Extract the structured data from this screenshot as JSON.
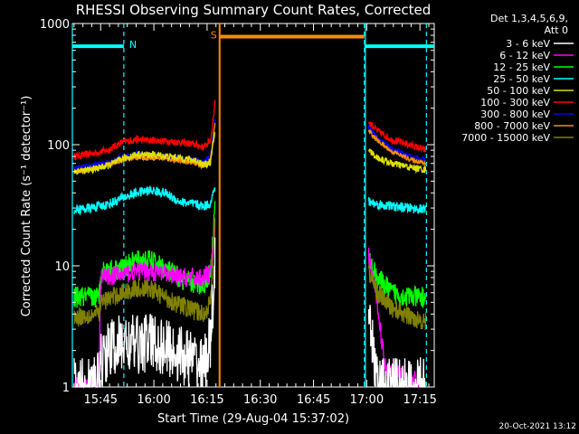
{
  "chart_data": {
    "type": "line",
    "title": "RHESSI Observing Summary Count Rates, Corrected",
    "xlabel": "Start Time (29-Aug-04 15:37:02)",
    "ylabel": "Corrected Count Rate (s⁻¹ detector⁻¹)",
    "y_scale": "log",
    "ylim": [
      1,
      1000
    ],
    "xlim_minutes": [
      0,
      102
    ],
    "x_tick_labels": [
      {
        "label": "15:45",
        "t": 7.97
      },
      {
        "label": "16:00",
        "t": 22.97
      },
      {
        "label": "16:15",
        "t": 37.97
      },
      {
        "label": "16:30",
        "t": 52.97
      },
      {
        "label": "16:45",
        "t": 67.97
      },
      {
        "label": "17:00",
        "t": 82.97
      },
      {
        "label": "17:15",
        "t": 97.97
      }
    ],
    "y_tick_labels": [
      {
        "label": "1",
        "v": 1
      },
      {
        "label": "10",
        "v": 10
      },
      {
        "label": "100",
        "v": 100
      },
      {
        "label": "1000",
        "v": 1000
      }
    ],
    "legend": {
      "position": "right",
      "header": [
        "Det 1,3,4,5,6,9,",
        "Att 0"
      ],
      "entries": [
        {
          "label": "3 - 6 keV",
          "color": "#ffffff"
        },
        {
          "label": "6 - 12 keV",
          "color": "#ff00ff"
        },
        {
          "label": "12 - 25 keV",
          "color": "#00ff00"
        },
        {
          "label": "25 - 50 keV",
          "color": "#00ffff"
        },
        {
          "label": "50 - 100 keV",
          "color": "#e0e000"
        },
        {
          "label": "100 - 300 keV",
          "color": "#ff0000"
        },
        {
          "label": "300 - 800 keV",
          "color": "#0000ff"
        },
        {
          "label": "800 - 7000 keV",
          "color": "#ff8c00"
        },
        {
          "label": "7000 - 15000 keV",
          "color": "#808000"
        }
      ]
    },
    "flags": [
      {
        "label": "N",
        "t_start": 0,
        "t_end": 14.5,
        "level": 650,
        "color": "#00ffff"
      },
      {
        "label": "S",
        "t_start": 41.5,
        "t_end": 82.3,
        "level": 780,
        "color": "#ff8c00"
      },
      {
        "label": "",
        "t_start": 82.3,
        "t_end": 102,
        "level": 650,
        "color": "#00ffff"
      }
    ],
    "markers": [
      {
        "t": 0,
        "color": "#00ffff",
        "style": "solid"
      },
      {
        "t": 14.5,
        "color": "#00ffff",
        "style": "dashed"
      },
      {
        "t": 41.5,
        "color": "#ff8c00",
        "style": "solid"
      },
      {
        "t": 82.3,
        "color": "#00ffff",
        "style": "dashed"
      },
      {
        "t": 82.6,
        "color": "#00ffff",
        "style": "solid"
      },
      {
        "t": 99.8,
        "color": "#00ffff",
        "style": "dashed"
      }
    ],
    "segments": [
      {
        "t_start": 0.5,
        "t_end": 40.2
      },
      {
        "t_start": 83.5,
        "t_end": 99.6
      }
    ],
    "series": [
      {
        "name": "100 - 300 keV",
        "color": "#ff0000",
        "noise": 0.03,
        "values": [
          [
            0.5,
            80
          ],
          [
            5,
            84
          ],
          [
            10,
            90
          ],
          [
            14,
            105
          ],
          [
            18,
            110
          ],
          [
            24,
            108
          ],
          [
            30,
            105
          ],
          [
            35,
            100
          ],
          [
            37,
            95
          ],
          [
            39,
            110
          ],
          [
            40.2,
            220
          ],
          [
            83.5,
            155
          ],
          [
            86,
            130
          ],
          [
            90,
            110
          ],
          [
            95,
            100
          ],
          [
            99.6,
            90
          ]
        ]
      },
      {
        "name": "300 - 800 keV",
        "color": "#0000ff",
        "noise": 0.02,
        "values": [
          [
            0.5,
            64
          ],
          [
            5,
            67
          ],
          [
            10,
            72
          ],
          [
            14,
            80
          ],
          [
            18,
            84
          ],
          [
            24,
            82
          ],
          [
            30,
            78
          ],
          [
            35,
            74
          ],
          [
            37,
            72
          ],
          [
            39,
            82
          ],
          [
            40.2,
            160
          ],
          [
            83.5,
            140
          ],
          [
            86,
            115
          ],
          [
            90,
            92
          ],
          [
            95,
            80
          ],
          [
            99.6,
            75
          ]
        ]
      },
      {
        "name": "800 - 7000 keV",
        "color": "#ff8c00",
        "noise": 0.02,
        "values": [
          [
            0.5,
            60
          ],
          [
            5,
            62
          ],
          [
            10,
            68
          ],
          [
            14,
            75
          ],
          [
            18,
            78
          ],
          [
            24,
            78
          ],
          [
            30,
            74
          ],
          [
            35,
            70
          ],
          [
            37,
            66
          ],
          [
            39,
            76
          ],
          [
            40.2,
            150
          ],
          [
            83.5,
            130
          ],
          [
            86,
            108
          ],
          [
            90,
            88
          ],
          [
            95,
            76
          ],
          [
            99.6,
            70
          ]
        ]
      },
      {
        "name": "50 - 100 keV",
        "color": "#e0e000",
        "noise": 0.03,
        "values": [
          [
            0.5,
            60
          ],
          [
            5,
            62
          ],
          [
            10,
            67
          ],
          [
            14,
            76
          ],
          [
            18,
            83
          ],
          [
            24,
            82
          ],
          [
            30,
            78
          ],
          [
            35,
            74
          ],
          [
            37,
            68
          ],
          [
            39,
            72
          ],
          [
            40.2,
            130
          ],
          [
            83.5,
            90
          ],
          [
            86,
            78
          ],
          [
            90,
            70
          ],
          [
            95,
            65
          ],
          [
            99.6,
            62
          ]
        ]
      },
      {
        "name": "25 - 50 keV",
        "color": "#00ffff",
        "noise": 0.04,
        "values": [
          [
            0.5,
            29
          ],
          [
            5,
            30
          ],
          [
            10,
            32
          ],
          [
            14,
            36
          ],
          [
            18,
            40
          ],
          [
            22,
            42
          ],
          [
            26,
            40
          ],
          [
            30,
            34
          ],
          [
            35,
            32
          ],
          [
            37,
            31
          ],
          [
            39,
            33
          ],
          [
            40.2,
            45
          ],
          [
            83.5,
            34
          ],
          [
            86,
            32
          ],
          [
            90,
            31
          ],
          [
            95,
            30
          ],
          [
            99.6,
            29
          ]
        ]
      },
      {
        "name": "12 - 25 keV",
        "color": "#00ff00",
        "noise": 0.09,
        "values": [
          [
            0.5,
            5.5
          ],
          [
            7.5,
            5.5
          ],
          [
            8,
            9
          ],
          [
            14,
            9.5
          ],
          [
            18,
            11
          ],
          [
            22,
            11
          ],
          [
            26,
            9.5
          ],
          [
            30,
            8
          ],
          [
            35,
            7
          ],
          [
            37,
            7
          ],
          [
            39,
            9
          ],
          [
            40.2,
            30
          ],
          [
            83.5,
            11
          ],
          [
            86,
            8
          ],
          [
            90,
            6
          ],
          [
            95,
            5.5
          ],
          [
            99.6,
            5.5
          ]
        ]
      },
      {
        "name": "6 - 12 keV",
        "color": "#ff00ff",
        "noise": 0.08,
        "values": [
          [
            0.5,
            1
          ],
          [
            7.5,
            1
          ],
          [
            8,
            8
          ],
          [
            14,
            8.5
          ],
          [
            18,
            9
          ],
          [
            22,
            9
          ],
          [
            26,
            8.5
          ],
          [
            30,
            8
          ],
          [
            35,
            8
          ],
          [
            37,
            8
          ],
          [
            39,
            9
          ],
          [
            40.2,
            20
          ],
          [
            83.5,
            12
          ],
          [
            86,
            5
          ],
          [
            88,
            1.5
          ],
          [
            95,
            1.2
          ],
          [
            99.6,
            1
          ]
        ]
      },
      {
        "name": "7000 - 15000 keV",
        "color": "#808000",
        "noise": 0.08,
        "values": [
          [
            0.5,
            3.8
          ],
          [
            7.5,
            4
          ],
          [
            8,
            5
          ],
          [
            14,
            6
          ],
          [
            18,
            6.5
          ],
          [
            22,
            6.5
          ],
          [
            26,
            5.5
          ],
          [
            30,
            4.8
          ],
          [
            35,
            4.2
          ],
          [
            37,
            4
          ],
          [
            39,
            5
          ],
          [
            40.2,
            25
          ],
          [
            83.5,
            9
          ],
          [
            86,
            6
          ],
          [
            90,
            4.5
          ],
          [
            95,
            3.8
          ],
          [
            99.6,
            3.5
          ]
        ]
      },
      {
        "name": "3 - 6 keV",
        "color": "#ffffff",
        "noise": 0.25,
        "values": [
          [
            0.5,
            1
          ],
          [
            7,
            1
          ],
          [
            8,
            1.6
          ],
          [
            10,
            2
          ],
          [
            14,
            2.3
          ],
          [
            18,
            2.2
          ],
          [
            22,
            2.4
          ],
          [
            26,
            2.1
          ],
          [
            30,
            1.9
          ],
          [
            35,
            1.6
          ],
          [
            37,
            1.4
          ],
          [
            39,
            2.5
          ],
          [
            40.2,
            10
          ],
          [
            83.5,
            3
          ],
          [
            85,
            2
          ],
          [
            86,
            1
          ],
          [
            99.6,
            1
          ]
        ]
      }
    ]
  },
  "footer": {
    "date_stamp": "20-Oct-2021 13:12"
  }
}
